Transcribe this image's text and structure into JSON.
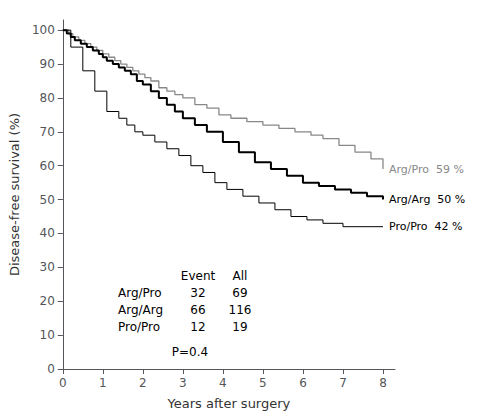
{
  "chart_data": {
    "type": "step",
    "xlabel": "Years after surgery",
    "ylabel": "Disease-free survival (%)",
    "xlim": [
      0,
      8.3
    ],
    "ylim": [
      0,
      103
    ],
    "xticks": [
      0,
      1,
      2,
      3,
      4,
      5,
      6,
      7,
      8
    ],
    "yticks": [
      0,
      10,
      20,
      30,
      40,
      50,
      60,
      70,
      80,
      90,
      100
    ],
    "grid": false,
    "series": [
      {
        "name": "Arg/Pro",
        "color": "#888888",
        "annotation": "Arg/Pro  59 %",
        "x": [
          0,
          0.15,
          0.25,
          0.4,
          0.55,
          0.7,
          0.85,
          1.0,
          1.15,
          1.3,
          1.45,
          1.6,
          1.75,
          1.9,
          2.05,
          2.2,
          2.4,
          2.6,
          2.8,
          3.0,
          3.3,
          3.6,
          3.9,
          4.2,
          4.6,
          5.0,
          5.4,
          5.8,
          6.2,
          6.5,
          6.9,
          7.3,
          7.7,
          8.0
        ],
        "values": [
          100,
          99,
          98,
          97,
          96,
          95,
          94,
          93,
          92,
          91,
          90,
          89,
          88,
          87,
          86,
          85,
          83,
          82,
          81,
          80,
          78,
          77,
          75,
          74,
          73,
          72,
          71,
          70,
          69,
          68,
          66,
          64,
          62,
          59
        ]
      },
      {
        "name": "Arg/Arg",
        "color": "#000000",
        "annotation": "Arg/Arg  50 %",
        "x": [
          0,
          0.1,
          0.2,
          0.3,
          0.45,
          0.6,
          0.75,
          0.9,
          1.0,
          1.1,
          1.25,
          1.4,
          1.55,
          1.7,
          1.85,
          2.0,
          2.2,
          2.4,
          2.6,
          2.8,
          3.0,
          3.3,
          3.6,
          4.0,
          4.4,
          4.8,
          5.2,
          5.6,
          6.0,
          6.4,
          6.8,
          7.2,
          7.6,
          8.0
        ],
        "values": [
          100,
          99,
          98,
          97,
          96,
          95,
          94,
          93,
          92,
          91,
          90,
          89,
          88,
          87,
          85,
          84,
          82,
          80,
          78,
          76,
          74,
          72,
          70,
          67,
          64,
          61,
          59,
          57,
          55,
          54,
          53,
          52,
          51,
          50
        ]
      },
      {
        "name": "Pro/Pro",
        "color": "#000000",
        "annotation": "Pro/Pro  42 %",
        "x": [
          0,
          0.2,
          0.5,
          0.8,
          1.1,
          1.4,
          1.6,
          1.8,
          2.0,
          2.3,
          2.6,
          2.9,
          3.2,
          3.5,
          3.8,
          4.1,
          4.5,
          4.9,
          5.3,
          5.7,
          6.1,
          6.5,
          7.0,
          7.5,
          8.0
        ],
        "values": [
          100,
          95,
          88,
          82,
          76,
          74,
          72,
          70,
          69,
          67,
          65,
          63,
          60,
          58,
          55,
          53,
          51,
          49,
          47,
          45,
          44,
          43,
          42,
          42,
          42
        ]
      }
    ],
    "table": {
      "header": [
        "Event",
        "All"
      ],
      "rows": [
        {
          "label": "Arg/Pro",
          "values": [
            32,
            69
          ]
        },
        {
          "label": "Arg/Arg",
          "values": [
            66,
            116
          ]
        },
        {
          "label": "Pro/Pro",
          "values": [
            12,
            19
          ]
        }
      ]
    },
    "note": "P=0.4"
  }
}
